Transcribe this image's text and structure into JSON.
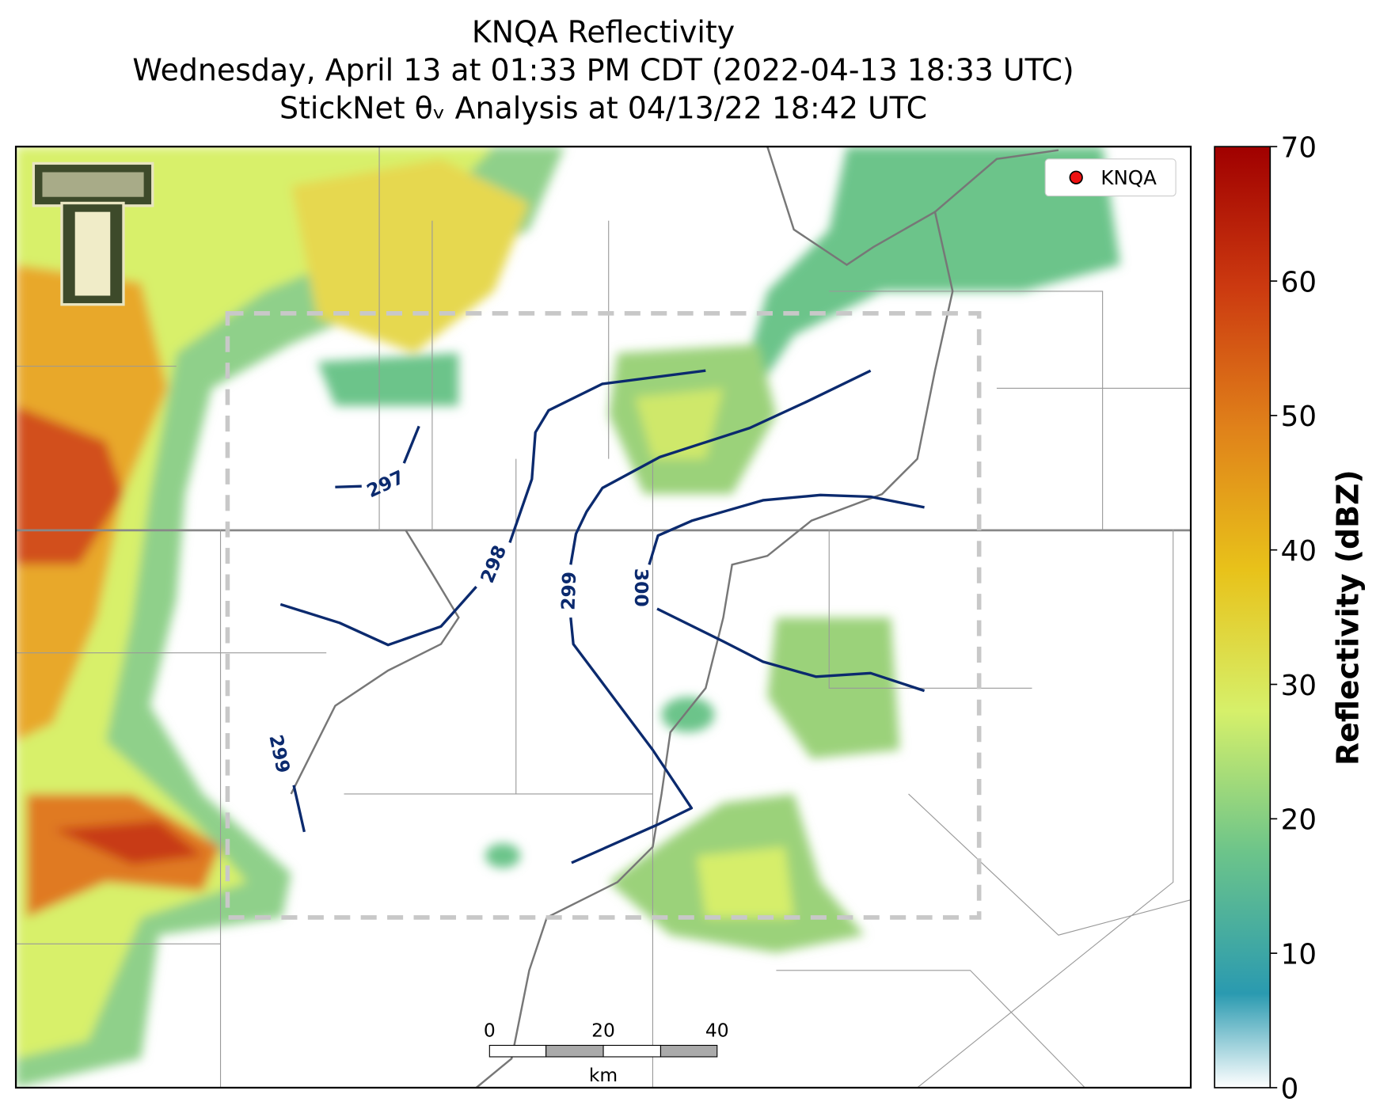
{
  "title": {
    "line1": "KNQA Reflectivity",
    "line2": "Wednesday, April 13 at 01:33 PM CDT (2022-04-13 18:33 UTC)",
    "line3": "StickNet θᵥ Analysis at 04/13/22 18:42 UTC"
  },
  "legend": {
    "label": "KNQA"
  },
  "contour_labels": [
    "297",
    "298",
    "299",
    "300",
    "299"
  ],
  "scale_bar": {
    "ticks": [
      "0",
      "20",
      "40"
    ],
    "unit": "km"
  },
  "colorbar": {
    "label": "Reflectivity (dBZ)",
    "lim": [
      0,
      70
    ],
    "ticks": [
      0,
      10,
      20,
      30,
      40,
      50,
      60,
      70
    ]
  }
}
